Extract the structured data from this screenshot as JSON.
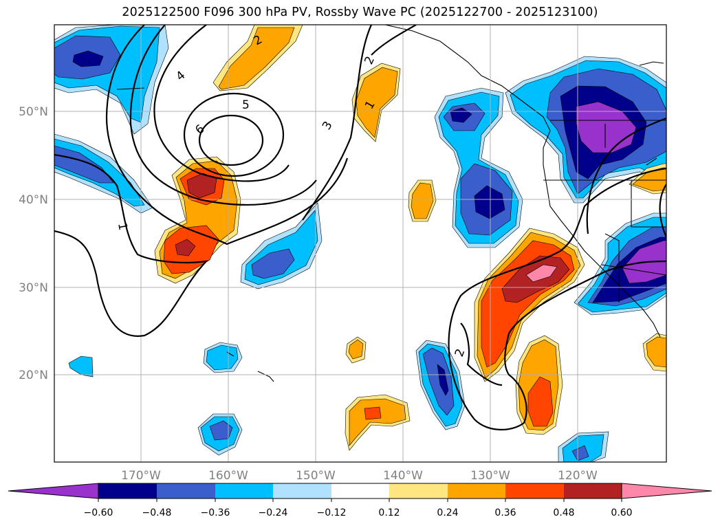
{
  "title": "2025122500 F096 300 hPa PV, Rossby Wave PC (2025122700 - 2025123100)",
  "lat_labels": [
    "50°N",
    "40°N",
    "30°N",
    "20°N"
  ],
  "lon_labels": [
    "170°W",
    "160°W",
    "150°W",
    "140°W",
    "130°W",
    "120°W"
  ],
  "contour_labels": [
    "1",
    "2",
    "3",
    "4",
    "5",
    "6",
    "2",
    "1",
    "2"
  ],
  "colorbar": {
    "ticks": [
      "−0.60",
      "−0.48",
      "−0.36",
      "−0.24",
      "−0.12",
      "0.12",
      "0.24",
      "0.36",
      "0.48",
      "0.60"
    ],
    "colors": [
      "#9932cc",
      "#00008b",
      "#3a5fcd",
      "#00bfff",
      "#b0e2ff",
      "#ffffff",
      "#ffe680",
      "#ffa500",
      "#ff4500",
      "#b22222",
      "#ff88aa"
    ]
  },
  "colors": {
    "neg_light": "#b0e2ff",
    "neg_cyan": "#00bfff",
    "neg_blue": "#3a5fcd",
    "neg_navy": "#00008b",
    "neg_purple": "#9932cc",
    "pos_yellow": "#ffe680",
    "pos_orange": "#ffa500",
    "pos_red": "#ff4500",
    "pos_dark": "#b22222",
    "pos_pink": "#ff88aa"
  }
}
